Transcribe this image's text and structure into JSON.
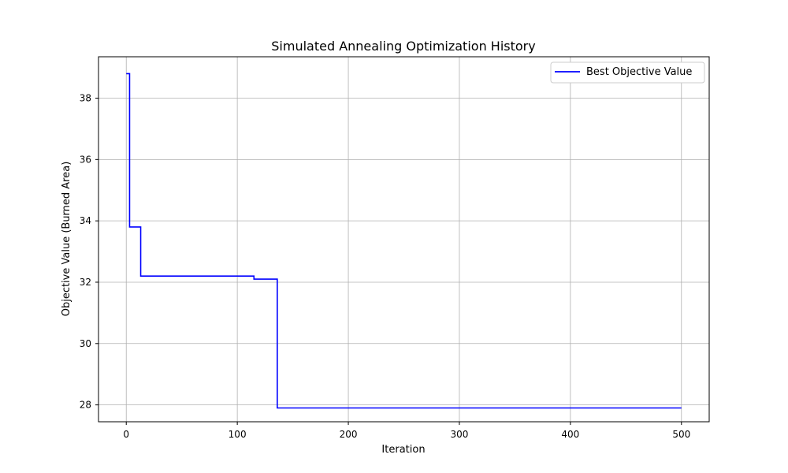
{
  "chart_data": {
    "type": "line",
    "title": "Simulated Annealing Optimization History",
    "xlabel": "Iteration",
    "ylabel": "Objective Value (Burned Area)",
    "xlim": [
      -25,
      525
    ],
    "ylim": [
      27.45,
      39.35
    ],
    "xticks": [
      0,
      100,
      200,
      300,
      400,
      500
    ],
    "yticks": [
      28,
      30,
      32,
      34,
      36,
      38
    ],
    "grid": true,
    "legend_position": "top-right",
    "series": [
      {
        "name": "Best Objective Value",
        "color": "#0000ff",
        "x": [
          0,
          3,
          3,
          13,
          13,
          115,
          115,
          136,
          136,
          500
        ],
        "y": [
          38.8,
          38.8,
          33.8,
          33.8,
          32.2,
          32.2,
          32.1,
          32.1,
          27.9,
          27.9
        ]
      }
    ]
  }
}
